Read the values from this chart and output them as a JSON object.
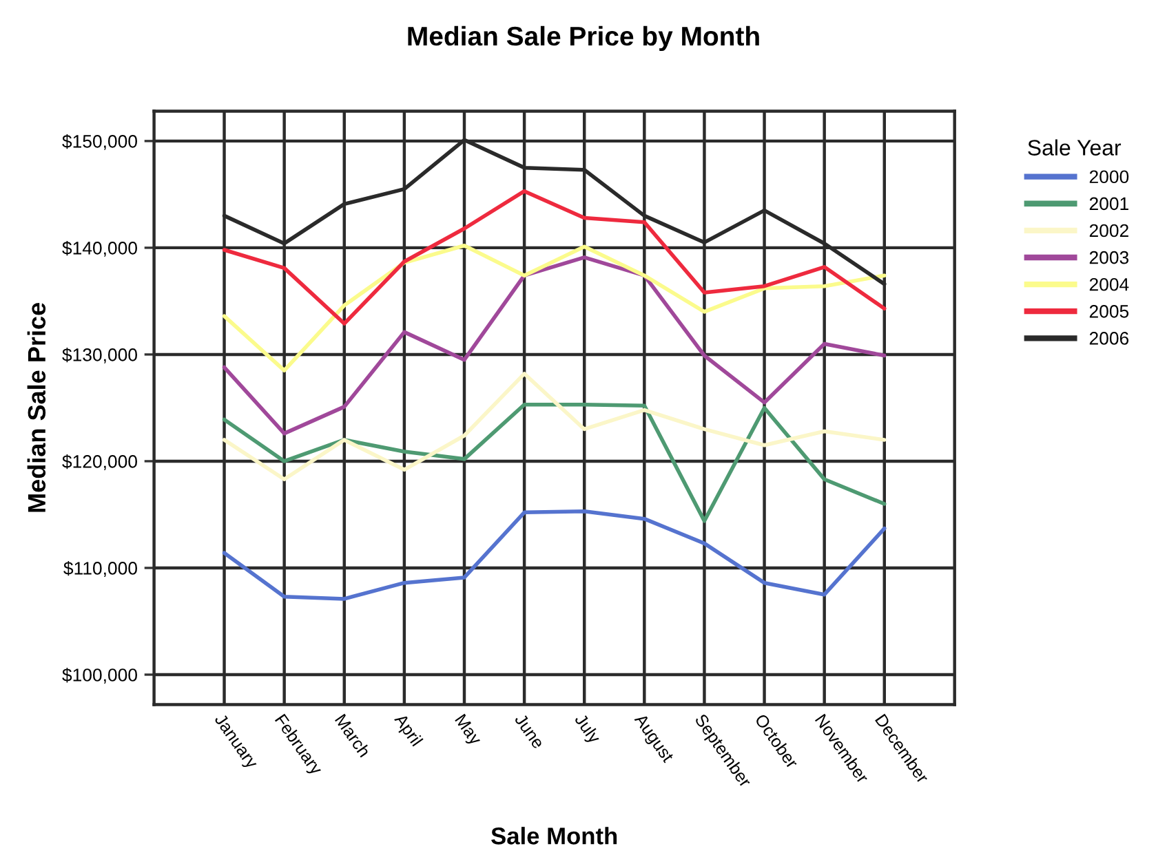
{
  "chart_data": {
    "type": "line",
    "title": "Median Sale Price by Month",
    "xlabel": "Sale Month",
    "ylabel": "Median Sale Price",
    "legend_title": "Sale Year",
    "categories": [
      "January",
      "February",
      "March",
      "April",
      "May",
      "June",
      "July",
      "August",
      "September",
      "October",
      "November",
      "December"
    ],
    "series": [
      {
        "name": "2000",
        "color": "#5573cf",
        "values": [
          111400,
          107300,
          107100,
          108600,
          109100,
          115200,
          115300,
          114600,
          112300,
          108600,
          107500,
          113700
        ]
      },
      {
        "name": "2001",
        "color": "#4e9a72",
        "values": [
          123900,
          120000,
          122000,
          120900,
          120200,
          125300,
          125300,
          125200,
          114400,
          125000,
          118300,
          116000
        ]
      },
      {
        "name": "2002",
        "color": "#fbf6c8",
        "values": [
          122000,
          118300,
          122000,
          119200,
          122400,
          128200,
          123000,
          124800,
          123000,
          121500,
          122800,
          122000
        ]
      },
      {
        "name": "2003",
        "color": "#a0489a",
        "values": [
          128800,
          122600,
          125100,
          132100,
          129500,
          137400,
          139100,
          137400,
          129900,
          125500,
          131000,
          129900
        ]
      },
      {
        "name": "2004",
        "color": "#fbfb8c",
        "values": [
          133600,
          128500,
          134600,
          138600,
          140200,
          137400,
          140100,
          137400,
          134000,
          136200,
          136400,
          137400
        ]
      },
      {
        "name": "2005",
        "color": "#ee2a3e",
        "values": [
          139800,
          138100,
          132900,
          138700,
          141800,
          145300,
          142800,
          142400,
          135800,
          136400,
          138200,
          134300
        ]
      },
      {
        "name": "2006",
        "color": "#2a2a2a",
        "values": [
          143000,
          140400,
          144100,
          145500,
          150100,
          147500,
          147300,
          143000,
          140500,
          143500,
          140400,
          136600
        ]
      }
    ],
    "ylim": [
      97200,
      152800
    ],
    "yticks": [
      {
        "value": 100000,
        "label": "$100,000"
      },
      {
        "value": 110000,
        "label": "$110,000"
      },
      {
        "value": 120000,
        "label": "$120,000"
      },
      {
        "value": 130000,
        "label": "$130,000"
      },
      {
        "value": 140000,
        "label": "$140,000"
      },
      {
        "value": 150000,
        "label": "$150,000"
      }
    ],
    "grid": true,
    "legend": "right"
  }
}
